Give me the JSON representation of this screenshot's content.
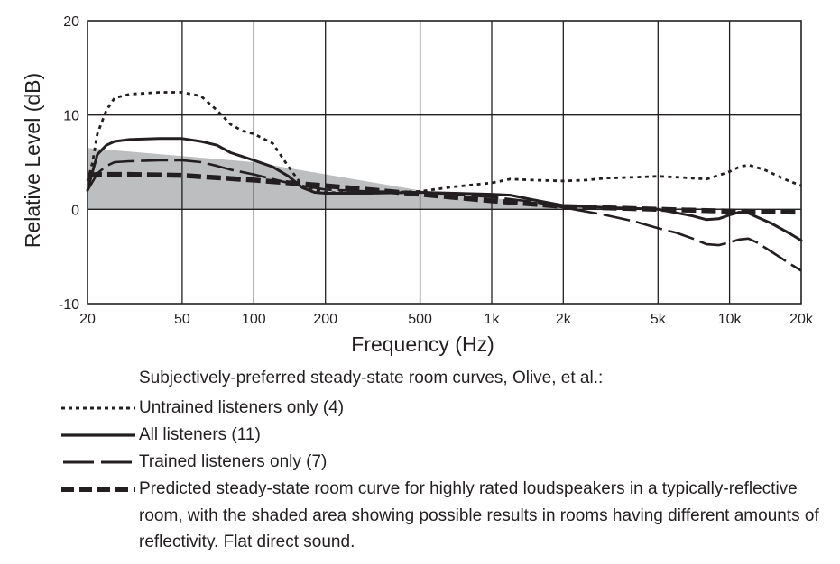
{
  "chart_data": {
    "type": "line",
    "title": "",
    "xlabel": "Frequency (Hz)",
    "ylabel": "Relative Level (dB)",
    "x_scale": "log",
    "xlim": [
      20,
      20000
    ],
    "ylim": [
      -10,
      20
    ],
    "grid": true,
    "x_ticks": [
      20,
      50,
      100,
      200,
      500,
      1000,
      2000,
      5000,
      10000,
      20000
    ],
    "x_tick_labels": [
      "20",
      "50",
      "100",
      "200",
      "500",
      "1k",
      "2k",
      "5k",
      "10k",
      "20k"
    ],
    "y_ticks": [
      -10,
      0,
      10,
      20
    ],
    "y_tick_labels": [
      "-10",
      "0",
      "10",
      "20"
    ],
    "shaded_region": {
      "upper": [
        [
          20,
          6.5
        ],
        [
          100,
          5.0
        ],
        [
          500,
          2.0
        ],
        [
          1000,
          1.2
        ],
        [
          2000,
          0.3
        ],
        [
          20000,
          0.0
        ]
      ],
      "lower": [
        [
          20,
          0.0
        ],
        [
          20000,
          0.0
        ]
      ],
      "color": "#bcbec0"
    },
    "series": [
      {
        "name": "Untrained listeners only (4)",
        "style": "dotted",
        "x": [
          20,
          21,
          22,
          24,
          26,
          30,
          40,
          50,
          60,
          70,
          80,
          90,
          100,
          120,
          140,
          160,
          200,
          300,
          500,
          700,
          1000,
          1200,
          1500,
          2000,
          2500,
          3000,
          4000,
          5000,
          6000,
          7000,
          8000,
          9000,
          10000,
          11000,
          12000,
          14000,
          17000,
          20000
        ],
        "y": [
          3.0,
          5.0,
          8.0,
          10.5,
          11.8,
          12.2,
          12.4,
          12.4,
          12.0,
          10.5,
          9.0,
          8.3,
          8.0,
          7.0,
          4.5,
          2.5,
          1.8,
          1.7,
          1.9,
          2.4,
          2.8,
          3.2,
          3.1,
          3.0,
          3.1,
          3.3,
          3.4,
          3.5,
          3.4,
          3.3,
          3.2,
          3.6,
          4.0,
          4.5,
          4.7,
          4.2,
          3.2,
          2.5
        ]
      },
      {
        "name": "All listeners (11)",
        "style": "solid",
        "x": [
          20,
          21,
          22,
          24,
          26,
          30,
          40,
          50,
          60,
          70,
          80,
          100,
          120,
          140,
          160,
          180,
          200,
          300,
          500,
          700,
          1000,
          1200,
          1500,
          2000,
          3000,
          5000,
          7000,
          8000,
          9000,
          10000,
          11000,
          12000,
          13000,
          15000,
          18000,
          20000
        ],
        "y": [
          2.0,
          4.0,
          5.8,
          6.8,
          7.2,
          7.4,
          7.5,
          7.5,
          7.2,
          6.8,
          6.0,
          5.2,
          4.5,
          3.5,
          2.3,
          1.8,
          1.7,
          1.7,
          1.8,
          1.7,
          1.6,
          1.5,
          1.0,
          0.4,
          0.2,
          0.0,
          -0.7,
          -1.1,
          -1.0,
          -0.6,
          -0.3,
          -0.4,
          -0.8,
          -1.5,
          -2.6,
          -3.3
        ]
      },
      {
        "name": "Trained listeners only (7)",
        "style": "longdash",
        "x": [
          20,
          22,
          24,
          26,
          30,
          40,
          50,
          60,
          70,
          80,
          100,
          120,
          150,
          200,
          300,
          500,
          700,
          1000,
          1500,
          2000,
          3000,
          4000,
          5000,
          6000,
          7000,
          8000,
          9000,
          10000,
          11000,
          12000,
          13000,
          15000,
          18000,
          20000
        ],
        "y": [
          2.0,
          3.8,
          4.6,
          5.0,
          5.1,
          5.2,
          5.2,
          5.0,
          4.6,
          4.2,
          3.7,
          3.2,
          2.6,
          2.1,
          1.9,
          1.8,
          1.6,
          1.3,
          0.8,
          0.2,
          -0.6,
          -1.3,
          -2.0,
          -2.5,
          -3.1,
          -3.7,
          -3.8,
          -3.5,
          -3.2,
          -3.1,
          -3.5,
          -4.5,
          -5.8,
          -6.5
        ]
      },
      {
        "name": "Predicted steady-state room curve for highly rated loudspeakers in a typically-reflective room, with the shaded area showing possible results in rooms having different amounts of reflectivity.  Flat direct sound.",
        "style": "heavydash",
        "x": [
          20,
          22,
          30,
          50,
          100,
          200,
          500,
          1000,
          2000,
          5000,
          10000,
          20000
        ],
        "y": [
          3.6,
          3.7,
          3.7,
          3.6,
          3.1,
          2.5,
          1.6,
          0.9,
          0.3,
          0.0,
          -0.2,
          -0.3
        ]
      }
    ]
  },
  "legend": {
    "heading": "Subjectively-preferred steady-state room curves, Olive, et al.:",
    "items": [
      {
        "label": "Untrained listeners only (4)",
        "style": "dotted"
      },
      {
        "label": "All listeners (11)",
        "style": "solid"
      },
      {
        "label": "Trained listeners only (7)",
        "style": "longdash"
      },
      {
        "label": "Predicted steady-state room curve for highly rated loudspeakers in a typically-reflective room, with the shaded area showing possible results in rooms having different amounts of reflectivity.  Flat direct sound.",
        "style": "heavydash"
      }
    ]
  },
  "colors": {
    "line": "#231f20",
    "shade": "#bcbec0",
    "grid": "#231f20"
  }
}
